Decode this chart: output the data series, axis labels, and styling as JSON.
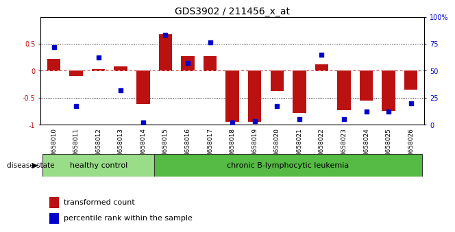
{
  "title": "GDS3902 / 211456_x_at",
  "samples": [
    "GSM658010",
    "GSM658011",
    "GSM658012",
    "GSM658013",
    "GSM658014",
    "GSM658015",
    "GSM658016",
    "GSM658017",
    "GSM658018",
    "GSM658019",
    "GSM658020",
    "GSM658021",
    "GSM658022",
    "GSM658023",
    "GSM658024",
    "GSM658025",
    "GSM658026"
  ],
  "red_bars": [
    0.22,
    -0.1,
    0.03,
    0.08,
    -0.62,
    0.68,
    0.27,
    0.27,
    -0.95,
    -0.95,
    -0.38,
    -0.78,
    0.12,
    -0.73,
    -0.55,
    -0.75,
    -0.35
  ],
  "blue_squares": [
    72,
    17,
    62,
    32,
    2,
    83,
    57,
    76,
    2,
    3,
    17,
    5,
    65,
    5,
    12,
    12,
    20
  ],
  "group1_label": "healthy control",
  "group1_count": 5,
  "group2_label": "chronic B-lymphocytic leukemia",
  "group2_count": 12,
  "disease_state_label": "disease state",
  "legend_red": "transformed count",
  "legend_blue": "percentile rank within the sample",
  "bar_color": "#BB1111",
  "square_color": "#0000CC",
  "group1_color": "#99DD88",
  "group2_color": "#55BB44",
  "tick_gray": "#AAAAAA",
  "bg_color": "#FFFFFF",
  "left_ylim": [
    -1.0,
    1.0
  ],
  "right_ylim": [
    0,
    100
  ],
  "left_yticks": [
    -1.0,
    -0.5,
    0.0,
    0.5
  ],
  "left_yticklabels": [
    "-1",
    "-0.5",
    "0",
    "0.5"
  ],
  "right_yticks": [
    0,
    25,
    50,
    75,
    100
  ],
  "right_yticklabels": [
    "0",
    "25",
    "50",
    "75",
    "100%"
  ]
}
